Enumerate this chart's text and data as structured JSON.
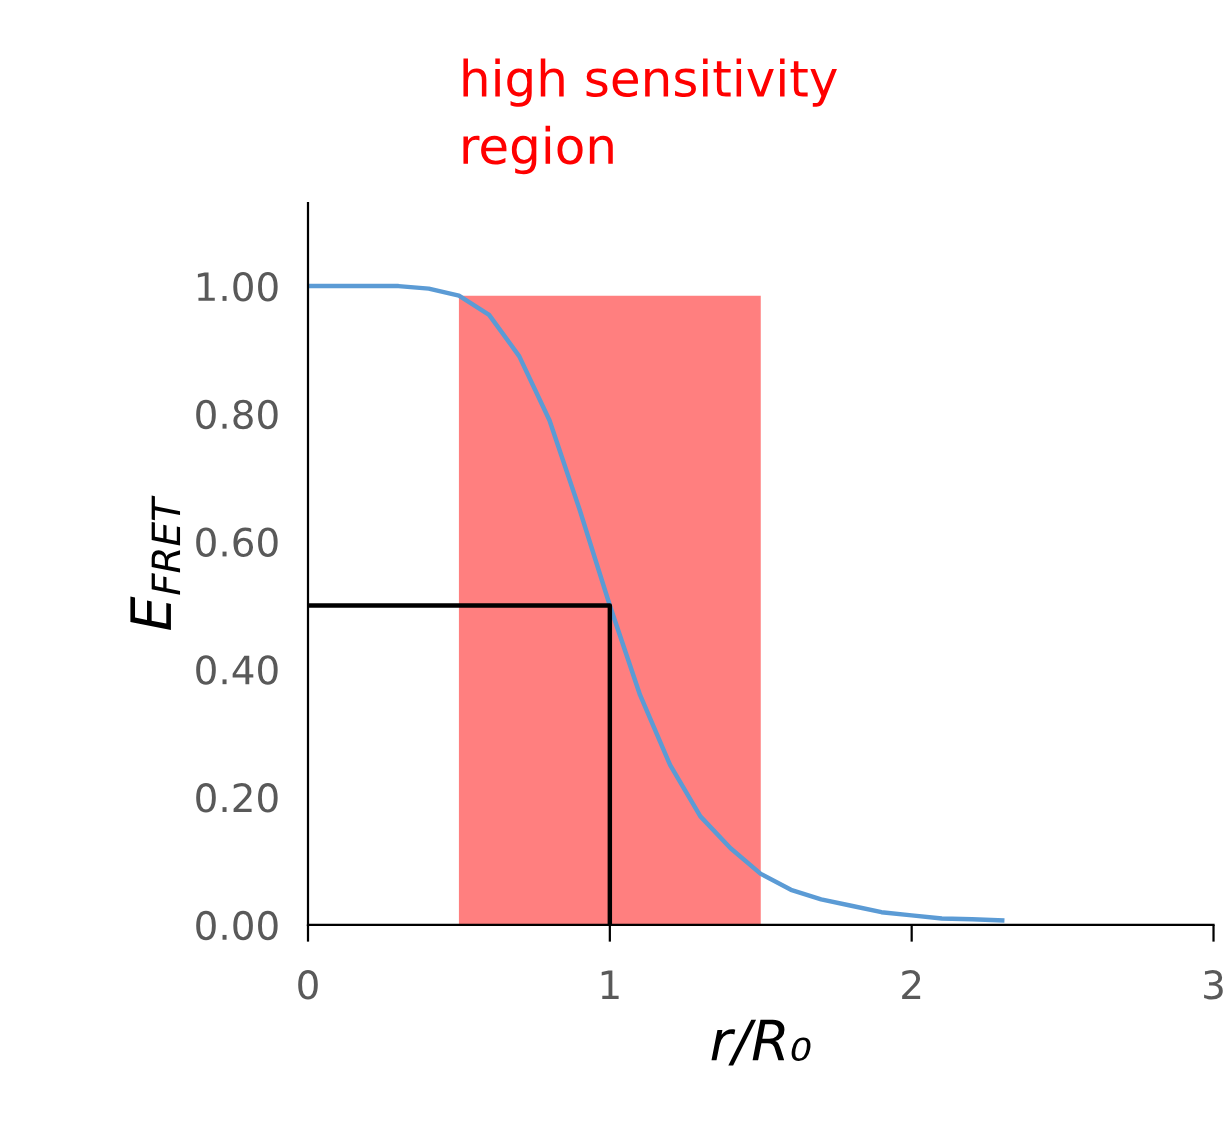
{
  "chart_data": {
    "type": "line",
    "xlabel": "r/R₀",
    "ylabel": "E$_{FRET}$",
    "series": [
      {
        "color": "#5b9bd5",
        "x": [
          0,
          0.1,
          0.2,
          0.3,
          0.4,
          0.5,
          0.6,
          0.7,
          0.8,
          0.9,
          1.0,
          1.1,
          1.2,
          1.3,
          1.4,
          1.5,
          1.6,
          1.7,
          1.8,
          1.9,
          2.0,
          2.1,
          2.2,
          2.3
        ],
        "values": [
          1.0,
          1.0,
          1.0,
          1.0,
          0.996,
          0.985,
          0.955,
          0.89,
          0.79,
          0.65,
          0.5,
          0.36,
          0.25,
          0.17,
          0.12,
          0.08,
          0.055,
          0.04,
          0.03,
          0.02,
          0.015,
          0.01,
          0.009,
          0.007
        ]
      },
      {
        "type": "line",
        "color": "#000000",
        "x": [
          0,
          1,
          1
        ],
        "values": [
          0.5,
          0.5,
          0
        ]
      }
    ],
    "bands": [
      {
        "axis": "x",
        "from": 0.5,
        "to": 1.5,
        "label": "high sensitivity\nregion",
        "color": "#ff0000"
      }
    ],
    "xlim": [
      0,
      3
    ],
    "xticks": [
      0,
      1,
      2,
      3
    ],
    "ylim": [
      0,
      1.13
    ],
    "yticks": [
      {
        "value": 0,
        "label": "0.00"
      },
      {
        "value": 0.2,
        "label": "0.20"
      },
      {
        "value": 0.4,
        "label": "0.40"
      },
      {
        "value": 0.6,
        "label": "0.60"
      },
      {
        "value": 0.8,
        "label": "0.80"
      },
      {
        "value": 1.0,
        "label": "1.00"
      }
    ],
    "grid": false,
    "legend": false
  }
}
